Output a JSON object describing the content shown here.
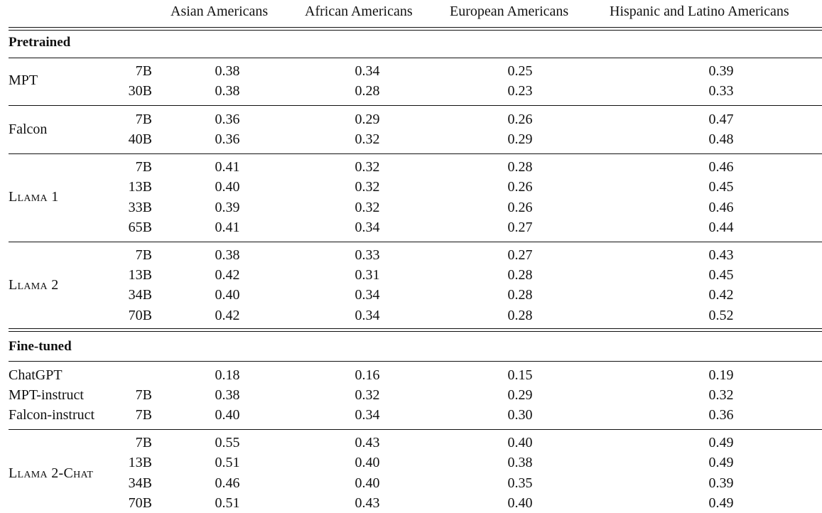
{
  "columns": [
    "Asian Americans",
    "African Americans",
    "European Americans",
    "Hispanic and Latino Americans"
  ],
  "sections": [
    {
      "label": "Pretrained",
      "groups": [
        {
          "model": "MPT",
          "rows": [
            {
              "size": "7B",
              "values": [
                "0.38",
                "0.34",
                "0.25",
                "0.39"
              ]
            },
            {
              "size": "30B",
              "values": [
                "0.38",
                "0.28",
                "0.23",
                "0.33"
              ]
            }
          ]
        },
        {
          "model": "Falcon",
          "rows": [
            {
              "size": "7B",
              "values": [
                "0.36",
                "0.29",
                "0.26",
                "0.47"
              ]
            },
            {
              "size": "40B",
              "values": [
                "0.36",
                "0.32",
                "0.29",
                "0.48"
              ]
            }
          ]
        },
        {
          "model": "Llama 1",
          "rows": [
            {
              "size": "7B",
              "values": [
                "0.41",
                "0.32",
                "0.28",
                "0.46"
              ]
            },
            {
              "size": "13B",
              "values": [
                "0.40",
                "0.32",
                "0.26",
                "0.45"
              ]
            },
            {
              "size": "33B",
              "values": [
                "0.39",
                "0.32",
                "0.26",
                "0.46"
              ]
            },
            {
              "size": "65B",
              "values": [
                "0.41",
                "0.34",
                "0.27",
                "0.44"
              ]
            }
          ]
        },
        {
          "model": "Llama 2",
          "rows": [
            {
              "size": "7B",
              "values": [
                "0.38",
                "0.33",
                "0.27",
                "0.43"
              ]
            },
            {
              "size": "13B",
              "values": [
                "0.42",
                "0.31",
                "0.28",
                "0.45"
              ]
            },
            {
              "size": "34B",
              "values": [
                "0.40",
                "0.34",
                "0.28",
                "0.42"
              ]
            },
            {
              "size": "70B",
              "values": [
                "0.42",
                "0.34",
                "0.28",
                "0.52"
              ]
            }
          ]
        }
      ]
    },
    {
      "label": "Fine-tuned",
      "groups": [
        {
          "rows": [
            {
              "model": "ChatGPT",
              "size": "",
              "values": [
                "0.18",
                "0.16",
                "0.15",
                "0.19"
              ]
            },
            {
              "model": "MPT-instruct",
              "size": "7B",
              "values": [
                "0.38",
                "0.32",
                "0.29",
                "0.32"
              ]
            },
            {
              "model": "Falcon-instruct",
              "size": "7B",
              "values": [
                "0.40",
                "0.34",
                "0.30",
                "0.36"
              ]
            }
          ]
        },
        {
          "model": "Llama 2-Chat",
          "rows": [
            {
              "size": "7B",
              "values": [
                "0.55",
                "0.43",
                "0.40",
                "0.49"
              ]
            },
            {
              "size": "13B",
              "values": [
                "0.51",
                "0.40",
                "0.38",
                "0.49"
              ]
            },
            {
              "size": "34B",
              "values": [
                "0.46",
                "0.40",
                "0.35",
                "0.39"
              ]
            },
            {
              "size": "70B",
              "values": [
                "0.51",
                "0.43",
                "0.40",
                "0.49"
              ]
            }
          ]
        }
      ]
    }
  ]
}
